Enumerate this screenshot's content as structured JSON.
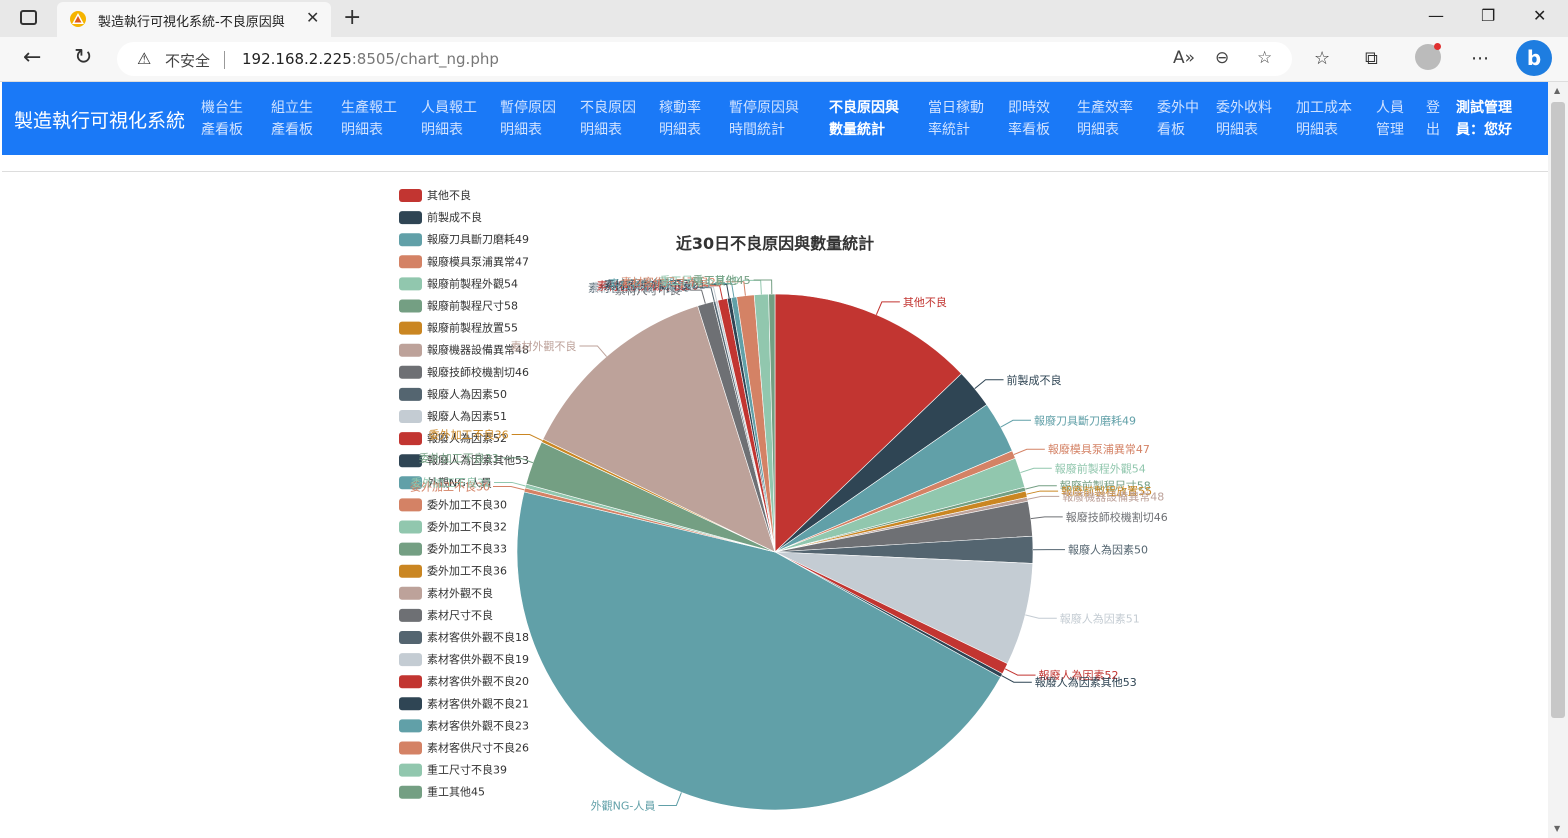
{
  "browser": {
    "tab_title": "製造執行可視化系統-不良原因與",
    "new_tab": "+",
    "close": "✕",
    "security_label": "不安全",
    "url_host": "192.168.2.225",
    "url_rest": ":8505/chart_ng.php",
    "window_controls": [
      "—",
      "❐",
      "✕"
    ]
  },
  "app": {
    "brand": "製造執行可視化系統",
    "nav": [
      {
        "l1": "機台生",
        "l2": "產看板"
      },
      {
        "l1": "組立生",
        "l2": "產看板"
      },
      {
        "l1": "生產報工",
        "l2": "明細表"
      },
      {
        "l1": "人員報工",
        "l2": "明細表"
      },
      {
        "l1": "暫停原因",
        "l2": "明細表"
      },
      {
        "l1": "不良原因",
        "l2": "明細表"
      },
      {
        "l1": "稼動率",
        "l2": "明細表"
      },
      {
        "l1": "暫停原因與",
        "l2": "時間統計"
      },
      {
        "l1": "不良原因與",
        "l2": "數量統計"
      },
      {
        "l1": "當日稼動",
        "l2": "率統計"
      },
      {
        "l1": "即時效",
        "l2": "率看板"
      },
      {
        "l1": "生產效率",
        "l2": "明細表"
      },
      {
        "l1": "委外中",
        "l2": "看板"
      },
      {
        "l1": "委外收料",
        "l2": "明細表"
      },
      {
        "l1": "加工成本",
        "l2": "明細表"
      },
      {
        "l1": "人員",
        "l2": "管理"
      },
      {
        "l1": "登",
        "l2": "出"
      },
      {
        "l1": "測試管理",
        "l2": "員：您好"
      }
    ]
  },
  "chart_data": {
    "type": "pie",
    "title": "近30日不良原因與數量統計",
    "legend_position": "left",
    "categories": [
      "其他不良",
      "前製成不良",
      "報廢刀具斷刀磨耗49",
      "報廢模具泵浦異常47",
      "報廢前製程外觀54",
      "報廢前製程尺寸58",
      "報廢前製程放置55",
      "報廢機器設備異常48",
      "報廢技師校機割切46",
      "報廢人為因素50",
      "報廢人為因素51",
      "報廢人為因素52",
      "報廢人為因素其他53",
      "外觀NG-人員",
      "委外加工不良30",
      "委外加工不良32",
      "委外加工不良33",
      "委外加工不良36",
      "素材外觀不良",
      "素材尺寸不良",
      "素材客供外觀不良18",
      "素材客供外觀不良19",
      "素材客供外觀不良20",
      "素材客供外觀不良21",
      "素材客供外觀不良23",
      "素材客供尺寸不良26",
      "重工尺寸不良39",
      "重工其他45"
    ],
    "values": [
      13.0,
      2.5,
      3.3,
      0.5,
      1.9,
      0.25,
      0.4,
      0.25,
      2.2,
      1.7,
      6.5,
      0.7,
      0.25,
      46.2,
      0.25,
      0.25,
      2.8,
      0.2,
      13.1,
      1.0,
      0.15,
      0.15,
      0.6,
      0.25,
      0.35,
      1.1,
      0.9,
      0.4
    ],
    "colors": [
      "#c23531",
      "#2f4554",
      "#61a0a8",
      "#d48265",
      "#91c7ae",
      "#749f83",
      "#ca8622",
      "#bda29a",
      "#6e7074",
      "#546570",
      "#c4ccd3",
      "#c23531",
      "#2f4554",
      "#61a0a8",
      "#d48265",
      "#91c7ae",
      "#749f83",
      "#ca8622",
      "#bda29a",
      "#6e7074",
      "#546570",
      "#c4ccd3",
      "#c23531",
      "#2f4554",
      "#61a0a8",
      "#d48265",
      "#91c7ae",
      "#749f83"
    ]
  }
}
